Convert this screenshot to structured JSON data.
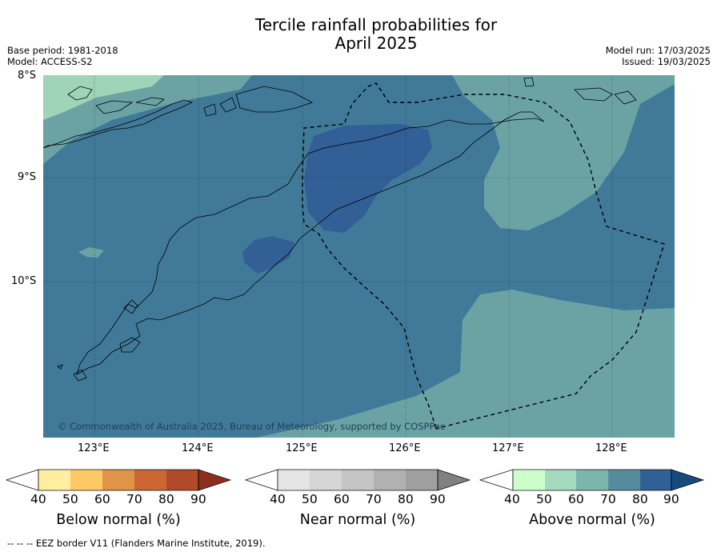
{
  "header": {
    "title_line1": "Tercile rainfall probabilities for",
    "title_line2": "April 2025",
    "base_period": "Base period: 1981-2018",
    "model": "Model: ACCESS-S2",
    "model_run": "Model run: 17/03/2025",
    "issued": "Issued: 19/03/2025"
  },
  "map": {
    "lat_labels": [
      "8°S",
      "9°S",
      "10°S"
    ],
    "lon_labels": [
      "123°E",
      "124°E",
      "125°E",
      "126°E",
      "127°E",
      "128°E"
    ],
    "copyright": "© Commonwealth of Australia 2025, Bureau of Meteorology, supported by COSPPac",
    "colors": {
      "above_50_60": "#9fd4b8",
      "above_60_70": "#6ba3a5",
      "above_70_80": "#417a99",
      "above_80_90": "#325f95"
    }
  },
  "colorbars": [
    {
      "label": "Below normal (%)",
      "ticks": [
        "40",
        "50",
        "60",
        "70",
        "80",
        "90"
      ],
      "colors": [
        "#ffeda0",
        "#fdc964",
        "#e09447",
        "#cc6633",
        "#b04a28",
        "#8b2e1e"
      ]
    },
    {
      "label": "Near normal (%)",
      "ticks": [
        "40",
        "50",
        "60",
        "70",
        "80",
        "90"
      ],
      "colors": [
        "#e5e5e5",
        "#d6d6d6",
        "#c5c5c5",
        "#b1b1b1",
        "#9f9f9f",
        "#808080"
      ]
    },
    {
      "label": "Above normal (%)",
      "ticks": [
        "40",
        "50",
        "60",
        "70",
        "80",
        "90"
      ],
      "colors": [
        "#ccffcc",
        "#a2d9bf",
        "#7ab6ac",
        "#548c9d",
        "#2f6196",
        "#174a7f"
      ]
    }
  ],
  "footer": {
    "legend_text": "--  --  -- EEZ border V11 (Flanders Marine Institute, 2019)."
  }
}
